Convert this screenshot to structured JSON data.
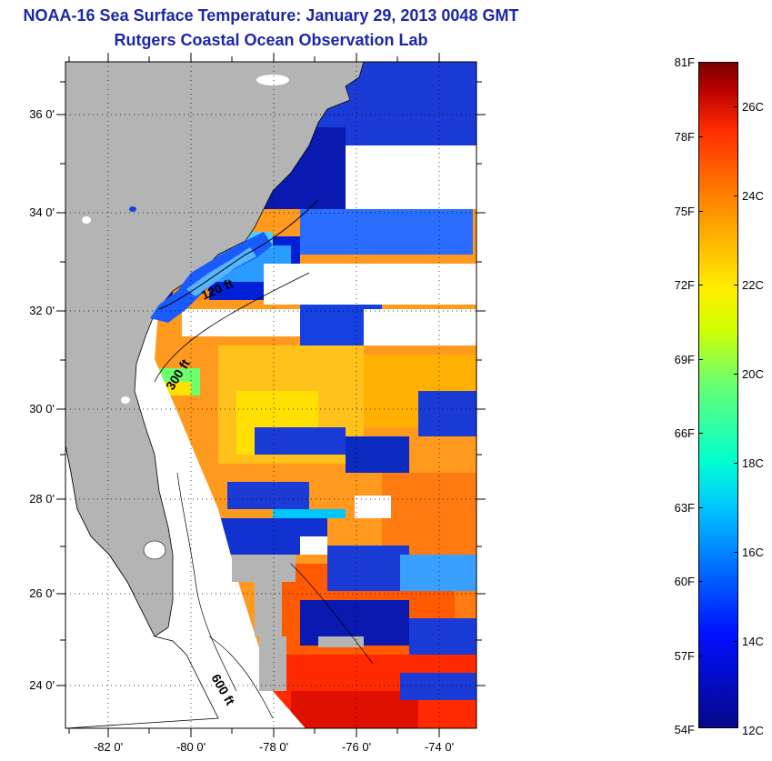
{
  "title": {
    "line1": "NOAA-16 Sea Surface Temperature:  January 29, 2013 0048 GMT",
    "line2": "Rutgers Coastal Ocean Observation Lab"
  },
  "map": {
    "latitude_labels": [
      "36 0'",
      "34 0'",
      "32 0'",
      "30 0'",
      "28 0'",
      "26 0'",
      "24 0'"
    ],
    "longitude_labels": [
      "-82 0'",
      "-80 0'",
      "-78 0'",
      "-76 0'",
      "-74 0'"
    ],
    "isobath_labels": [
      "120 ft",
      "300 ft",
      "600 ft"
    ],
    "colors": {
      "land": "#b4b4b4",
      "cloud": "#ffffff",
      "coastline": "#000000"
    }
  },
  "colorbar": {
    "fahrenheit_labels": [
      "81F",
      "78F",
      "75F",
      "72F",
      "69F",
      "66F",
      "63F",
      "60F",
      "57F",
      "54F"
    ],
    "celsius_labels": [
      "26C",
      "24C",
      "22C",
      "20C",
      "18C",
      "16C",
      "14C",
      "12C"
    ],
    "range_f": [
      54,
      81
    ],
    "range_c": [
      12,
      27
    ]
  }
}
